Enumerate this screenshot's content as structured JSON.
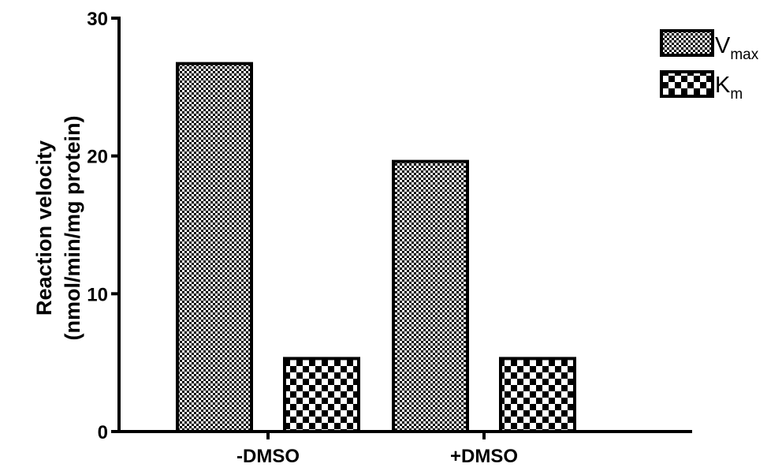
{
  "chart_data": {
    "type": "bar",
    "categories": [
      "-DMSO",
      "+DMSO"
    ],
    "series": [
      {
        "name": "Vmax",
        "name_main": "V",
        "name_sub": "max",
        "values": [
          26.7,
          19.6
        ],
        "pattern": "fine-checker"
      },
      {
        "name": "Km",
        "name_main": "K",
        "name_sub": "m",
        "values": [
          5.3,
          5.3
        ],
        "pattern": "coarse-checker"
      }
    ],
    "title": "",
    "xlabel": "",
    "ylabel": [
      "Reaction velocity",
      "(nmol/min/mg protein)"
    ],
    "ylim": [
      0,
      30
    ],
    "yticks": [
      0,
      10,
      20,
      30
    ],
    "ytick_labels": [
      "0",
      "10",
      "20",
      "30"
    ],
    "grid": false,
    "legend_position": "top-right",
    "colors": {
      "ink": "#000000",
      "fill": "#ffffff"
    }
  }
}
